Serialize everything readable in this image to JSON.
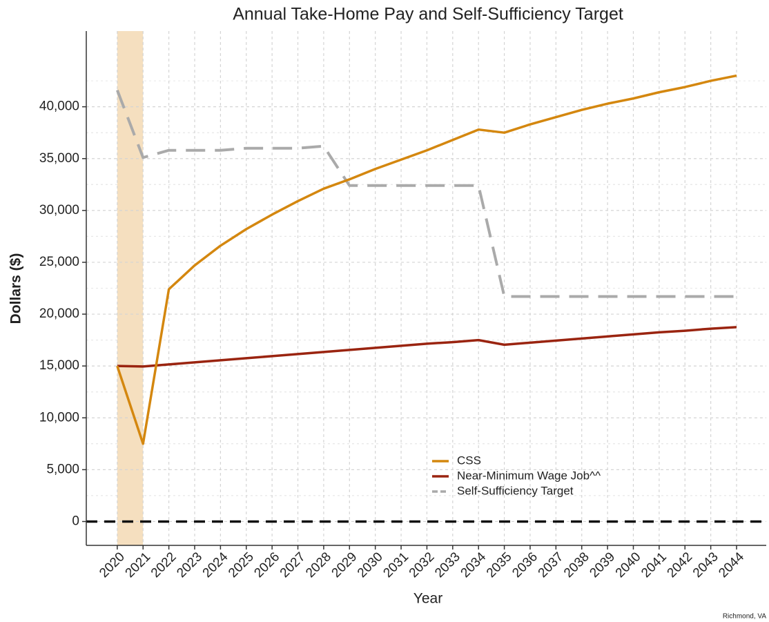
{
  "chart_data": {
    "type": "line",
    "title": "Annual Take-Home Pay and Self-Sufficiency Target",
    "x_label": "Year",
    "y_label": "Dollars ($)",
    "caption": "Richmond, VA",
    "x": [
      2020,
      2021,
      2022,
      2023,
      2024,
      2025,
      2026,
      2027,
      2028,
      2029,
      2030,
      2031,
      2032,
      2033,
      2034,
      2035,
      2036,
      2037,
      2038,
      2039,
      2040,
      2041,
      2042,
      2043,
      2044
    ],
    "series": [
      {
        "name": "CSS",
        "color": "#d4870f",
        "dash": false,
        "values": [
          15000,
          7500,
          22400,
          24700,
          26600,
          28200,
          29600,
          30900,
          32100,
          33000,
          34000,
          34900,
          35800,
          36800,
          37800,
          37500,
          38300,
          39000,
          39700,
          40300,
          40800,
          41400,
          41900,
          42500,
          43000
        ]
      },
      {
        "name": "Near-Minimum Wage Job^^",
        "color": "#9a2410",
        "dash": false,
        "values": [
          15000,
          14950,
          15150,
          15350,
          15550,
          15750,
          15950,
          16150,
          16350,
          16550,
          16750,
          16950,
          17150,
          17300,
          17500,
          17050,
          17250,
          17450,
          17650,
          17850,
          18050,
          18250,
          18400,
          18600,
          18750
        ]
      },
      {
        "name": "Self-Sufficiency Target",
        "color": "#aaaaaa",
        "dash": true,
        "values": [
          41600,
          35100,
          35800,
          35800,
          35800,
          36000,
          36000,
          36000,
          36200,
          32400,
          32400,
          32400,
          32400,
          32400,
          32400,
          21700,
          21700,
          21700,
          21700,
          21700,
          21700,
          21700,
          21700,
          21700,
          21700
        ]
      }
    ],
    "xlim": [
      2018.8,
      2045.15
    ],
    "xticks": [
      2020,
      2021,
      2022,
      2023,
      2024,
      2025,
      2026,
      2027,
      2028,
      2029,
      2030,
      2031,
      2032,
      2033,
      2034,
      2035,
      2036,
      2037,
      2038,
      2039,
      2040,
      2041,
      2042,
      2043,
      2044
    ],
    "ylim": [
      -2300,
      47300
    ],
    "yticks": [
      0,
      {
        "value": 5000,
        "label": "5,000"
      },
      {
        "value": 10000,
        "label": "10,000"
      },
      {
        "value": 15000,
        "label": "15,000"
      },
      {
        "value": 20000,
        "label": "20,000"
      },
      {
        "value": 25000,
        "label": "25,000"
      },
      {
        "value": 30000,
        "label": "30,000"
      },
      {
        "value": 35000,
        "label": "35,000"
      },
      {
        "value": 40000,
        "label": "40,000"
      }
    ],
    "grid": true,
    "shade": {
      "xmin": 2020,
      "xmax": 2021,
      "color": "#f5dfbf"
    },
    "hline": {
      "y": 0,
      "color": "#111111",
      "dash": true
    },
    "legend": "bottom"
  }
}
